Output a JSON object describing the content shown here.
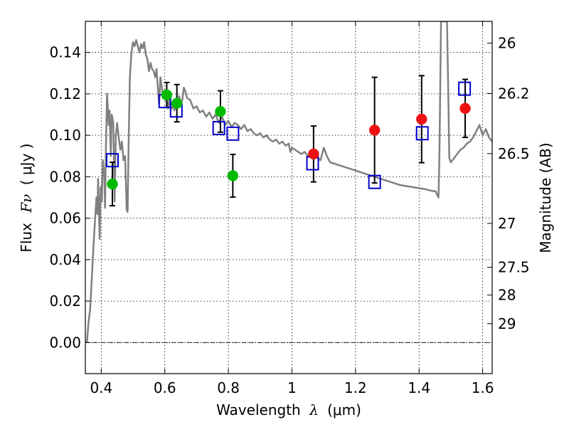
{
  "chart_data": {
    "type": "scatter",
    "xlabel": {
      "prefix": "Wavelength",
      "symbol": "λ",
      "units": "(μm)"
    },
    "ylabel": {
      "prefix": "Flux",
      "symbol": "Fν",
      "units": "( μJy )"
    },
    "ylabel_right": "Magnitude (AB)",
    "xlim": [
      0.35,
      1.63
    ],
    "ylim": [
      -0.015,
      0.155
    ],
    "xticks": [
      0.4,
      0.6,
      0.8,
      1.0,
      1.2,
      1.4,
      1.6
    ],
    "xtick_labels": [
      "0.4",
      "0.6",
      "0.8",
      "1",
      "1.2",
      "1.4",
      "1.6"
    ],
    "yticks": [
      0.0,
      0.02,
      0.04,
      0.06,
      0.08,
      0.1,
      0.12,
      0.14
    ],
    "ytick_labels": [
      "0.00",
      "0.02",
      "0.04",
      "0.06",
      "0.08",
      "0.10",
      "0.12",
      "0.14"
    ],
    "right_ticks": [
      {
        "label": "26",
        "flux": 0.1445
      },
      {
        "label": "26.2",
        "flux": 0.1202
      },
      {
        "label": "26.5",
        "flux": 0.0912
      },
      {
        "label": "27",
        "flux": 0.0575
      },
      {
        "label": "27.5",
        "flux": 0.0363
      },
      {
        "label": "28",
        "flux": 0.0229
      },
      {
        "label": "29",
        "flux": 0.0091
      }
    ],
    "grid": true,
    "colors": {
      "green": "#00bb00",
      "red": "#ee1111",
      "blue": "#0000cc",
      "model": "#808080",
      "error": "#000000"
    },
    "series": [
      {
        "marker": "circle",
        "color": "#00bb00",
        "points": [
          {
            "x": 0.435,
            "y": 0.0765,
            "err": 0.0105
          },
          {
            "x": 0.606,
            "y": 0.1195,
            "err": 0.006
          },
          {
            "x": 0.638,
            "y": 0.1155,
            "err": 0.009
          },
          {
            "x": 0.775,
            "y": 0.1115,
            "err": 0.01
          },
          {
            "x": 0.814,
            "y": 0.0805,
            "err": 0.0103
          }
        ]
      },
      {
        "marker": "circle",
        "color": "#ee1111",
        "points": [
          {
            "x": 1.068,
            "y": 0.091,
            "err": 0.0135
          },
          {
            "x": 1.26,
            "y": 0.1025,
            "err": 0.0255
          },
          {
            "x": 1.408,
            "y": 0.1078,
            "err": 0.021
          },
          {
            "x": 1.545,
            "y": 0.113,
            "err": 0.014
          }
        ]
      },
      {
        "marker": "square",
        "color": "#0000cc",
        "points": [
          {
            "x": 0.435,
            "y": 0.088
          },
          {
            "x": 0.6,
            "y": 0.1165
          },
          {
            "x": 0.636,
            "y": 0.112
          },
          {
            "x": 0.77,
            "y": 0.1035
          },
          {
            "x": 0.814,
            "y": 0.1008
          },
          {
            "x": 1.065,
            "y": 0.0865
          },
          {
            "x": 1.26,
            "y": 0.0775
          },
          {
            "x": 1.41,
            "y": 0.101
          },
          {
            "x": 1.543,
            "y": 0.1225
          }
        ]
      },
      {
        "marker": "line",
        "color": "#808080",
        "points": [
          [
            0.355,
            0.0
          ],
          [
            0.36,
            0.01
          ],
          [
            0.365,
            0.016
          ],
          [
            0.37,
            0.03
          ],
          [
            0.375,
            0.045
          ],
          [
            0.38,
            0.058
          ],
          [
            0.385,
            0.07
          ],
          [
            0.388,
            0.062
          ],
          [
            0.39,
            0.079
          ],
          [
            0.395,
            0.05
          ],
          [
            0.398,
            0.075
          ],
          [
            0.402,
            0.068
          ],
          [
            0.405,
            0.088
          ],
          [
            0.41,
            0.08
          ],
          [
            0.412,
            0.065
          ],
          [
            0.415,
            0.095
          ],
          [
            0.418,
            0.12
          ],
          [
            0.42,
            0.115
          ],
          [
            0.423,
            0.105
          ],
          [
            0.426,
            0.112
          ],
          [
            0.43,
            0.09
          ],
          [
            0.433,
            0.11
          ],
          [
            0.438,
            0.106
          ],
          [
            0.442,
            0.068
          ],
          [
            0.446,
            0.1
          ],
          [
            0.45,
            0.106
          ],
          [
            0.455,
            0.099
          ],
          [
            0.46,
            0.093
          ],
          [
            0.465,
            0.097
          ],
          [
            0.47,
            0.088
          ],
          [
            0.475,
            0.09
          ],
          [
            0.478,
            0.075
          ],
          [
            0.48,
            0.064
          ],
          [
            0.483,
            0.063
          ],
          [
            0.486,
            0.095
          ],
          [
            0.49,
            0.128
          ],
          [
            0.495,
            0.14
          ],
          [
            0.5,
            0.145
          ],
          [
            0.505,
            0.143
          ],
          [
            0.51,
            0.146
          ],
          [
            0.515,
            0.143
          ],
          [
            0.52,
            0.14
          ],
          [
            0.525,
            0.144
          ],
          [
            0.53,
            0.142
          ],
          [
            0.535,
            0.145
          ],
          [
            0.54,
            0.139
          ],
          [
            0.545,
            0.137
          ],
          [
            0.55,
            0.131
          ],
          [
            0.555,
            0.135
          ],
          [
            0.56,
            0.132
          ],
          [
            0.565,
            0.131
          ],
          [
            0.57,
            0.128
          ],
          [
            0.574,
            0.132
          ],
          [
            0.578,
            0.123
          ],
          [
            0.582,
            0.115
          ],
          [
            0.586,
            0.128
          ],
          [
            0.59,
            0.124
          ],
          [
            0.594,
            0.118
          ],
          [
            0.598,
            0.12
          ],
          [
            0.602,
            0.117
          ],
          [
            0.606,
            0.118
          ],
          [
            0.61,
            0.113
          ],
          [
            0.614,
            0.117
          ],
          [
            0.618,
            0.114
          ],
          [
            0.622,
            0.113
          ],
          [
            0.626,
            0.115
          ],
          [
            0.63,
            0.112
          ],
          [
            0.635,
            0.114
          ],
          [
            0.64,
            0.115
          ],
          [
            0.645,
            0.119
          ],
          [
            0.65,
            0.115
          ],
          [
            0.655,
            0.117
          ],
          [
            0.66,
            0.123
          ],
          [
            0.665,
            0.121
          ],
          [
            0.67,
            0.118
          ],
          [
            0.68,
            0.117
          ],
          [
            0.69,
            0.113
          ],
          [
            0.7,
            0.114
          ],
          [
            0.71,
            0.111
          ],
          [
            0.72,
            0.112
          ],
          [
            0.73,
            0.109
          ],
          [
            0.74,
            0.111
          ],
          [
            0.75,
            0.108
          ],
          [
            0.76,
            0.11
          ],
          [
            0.77,
            0.106
          ],
          [
            0.78,
            0.109
          ],
          [
            0.79,
            0.105
          ],
          [
            0.8,
            0.107
          ],
          [
            0.81,
            0.104
          ],
          [
            0.82,
            0.106
          ],
          [
            0.83,
            0.105
          ],
          [
            0.84,
            0.103
          ],
          [
            0.85,
            0.105
          ],
          [
            0.86,
            0.102
          ],
          [
            0.87,
            0.103
          ],
          [
            0.88,
            0.101
          ],
          [
            0.89,
            0.1
          ],
          [
            0.9,
            0.101
          ],
          [
            0.91,
            0.099
          ],
          [
            0.92,
            0.1
          ],
          [
            0.93,
            0.098
          ],
          [
            0.94,
            0.097
          ],
          [
            0.95,
            0.098
          ],
          [
            0.96,
            0.096
          ],
          [
            0.97,
            0.097
          ],
          [
            0.98,
            0.095
          ],
          [
            0.99,
            0.096
          ],
          [
            0.995,
            0.092
          ],
          [
            1.0,
            0.094
          ],
          [
            1.01,
            0.093
          ],
          [
            1.02,
            0.092
          ],
          [
            1.03,
            0.091
          ],
          [
            1.04,
            0.092
          ],
          [
            1.05,
            0.09
          ],
          [
            1.06,
            0.09
          ],
          [
            1.07,
            0.09
          ],
          [
            1.08,
            0.089
          ],
          [
            1.09,
            0.088
          ],
          [
            1.1,
            0.094
          ],
          [
            1.11,
            0.09
          ],
          [
            1.12,
            0.087
          ],
          [
            1.14,
            0.086
          ],
          [
            1.16,
            0.085
          ],
          [
            1.18,
            0.084
          ],
          [
            1.2,
            0.083
          ],
          [
            1.22,
            0.082
          ],
          [
            1.24,
            0.081
          ],
          [
            1.26,
            0.08
          ],
          [
            1.28,
            0.079
          ],
          [
            1.3,
            0.078
          ],
          [
            1.32,
            0.077
          ],
          [
            1.34,
            0.076
          ],
          [
            1.36,
            0.0755
          ],
          [
            1.38,
            0.075
          ],
          [
            1.4,
            0.0745
          ],
          [
            1.42,
            0.074
          ],
          [
            1.44,
            0.0732
          ],
          [
            1.452,
            0.073
          ],
          [
            1.458,
            0.071
          ],
          [
            1.461,
            0.07
          ],
          [
            1.464,
            0.09
          ],
          [
            1.467,
            0.13
          ],
          [
            1.469,
            0.155
          ],
          [
            1.488,
            0.155
          ],
          [
            1.492,
            0.12
          ],
          [
            1.495,
            0.089
          ],
          [
            1.5,
            0.087
          ],
          [
            1.51,
            0.089
          ],
          [
            1.52,
            0.091
          ],
          [
            1.53,
            0.093
          ],
          [
            1.54,
            0.094
          ],
          [
            1.55,
            0.096
          ],
          [
            1.56,
            0.097
          ],
          [
            1.57,
            0.099
          ],
          [
            1.58,
            0.102
          ],
          [
            1.59,
            0.105
          ],
          [
            1.6,
            0.1
          ],
          [
            1.61,
            0.103
          ],
          [
            1.62,
            0.099
          ],
          [
            1.63,
            0.097
          ]
        ]
      }
    ]
  }
}
